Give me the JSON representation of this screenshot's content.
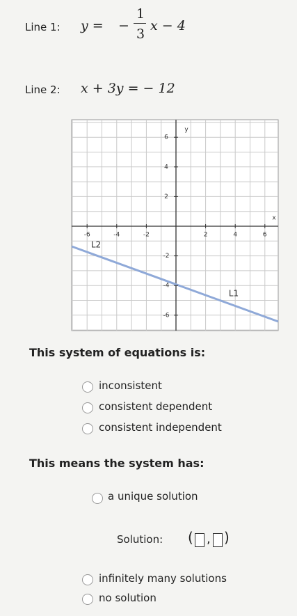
{
  "line1": {
    "label": "Line 1:",
    "lhs": "y =",
    "sign": "−",
    "numerator": "1",
    "denominator": "3",
    "rhs": "x − 4"
  },
  "line2": {
    "label": "Line 2:",
    "equation": "x + 3y = − 12"
  },
  "graph": {
    "x_label": "x",
    "y_label": "y",
    "xticks": [
      -6,
      -4,
      -2,
      2,
      4,
      6
    ],
    "yticks": [
      6,
      4,
      2,
      -2,
      -4,
      -6
    ],
    "line_labels": [
      "L2",
      "L1"
    ]
  },
  "question1": {
    "prompt": "This system of equations is:",
    "options": [
      "inconsistent",
      "consistent dependent",
      "consistent independent"
    ]
  },
  "question2": {
    "prompt": "This means the system has:",
    "options": [
      "a unique solution",
      "infinitely many solutions",
      "no solution"
    ],
    "solution_label": "Solution:",
    "open": "(",
    "comma": ",",
    "close": ")"
  }
}
